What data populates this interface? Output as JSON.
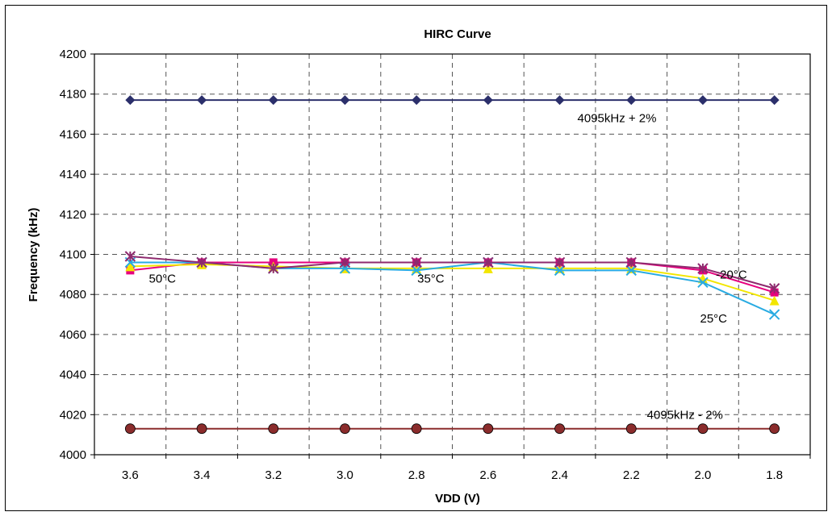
{
  "chart_data": {
    "type": "line",
    "title": "HIRC Curve",
    "xlabel": "VDD (V)",
    "ylabel": "Frequency (kHz)",
    "categories": [
      "3.6",
      "3.4",
      "3.2",
      "3.0",
      "2.8",
      "2.6",
      "2.4",
      "2.2",
      "2.0",
      "1.8"
    ],
    "ylim": [
      4000,
      4200
    ],
    "yticks": [
      "4000",
      "4020",
      "4040",
      "4060",
      "4080",
      "4100",
      "4120",
      "4140",
      "4160",
      "4180",
      "4200"
    ],
    "grid": true,
    "series": [
      {
        "color": "#2b2f6b",
        "marker": "diamond",
        "values": [
          4177,
          4177,
          4177,
          4177,
          4177,
          4177,
          4177,
          4177,
          4177,
          4177
        ]
      },
      {
        "color": "#8b2c2c",
        "marker": "circle",
        "values": [
          4013,
          4013,
          4013,
          4013,
          4013,
          4013,
          4013,
          4013,
          4013,
          4013
        ]
      },
      {
        "color": "#e6007e",
        "marker": "square",
        "values": [
          4092,
          4096,
          4096,
          4096,
          4096,
          4096,
          4096,
          4096,
          4092,
          4081
        ]
      },
      {
        "color": "#f2e600",
        "marker": "triangle",
        "values": [
          4094,
          4095,
          4094,
          4093,
          4093,
          4093,
          4093,
          4093,
          4088,
          4077
        ]
      },
      {
        "color": "#29abe2",
        "marker": "x",
        "values": [
          4096,
          4096,
          4093,
          4093,
          4092,
          4096,
          4092,
          4092,
          4086,
          4070
        ]
      },
      {
        "color": "#8e2a6e",
        "marker": "star",
        "values": [
          4099,
          4096,
          4093,
          4096,
          4096,
          4096,
          4096,
          4096,
          4093,
          4083
        ]
      }
    ],
    "annotations": [
      {
        "text": "4095kHz + 2%",
        "x": 6.8,
        "y": 4166
      },
      {
        "text": "4095kHz - 2%",
        "x": 7.75,
        "y": 4018
      },
      {
        "text": "50°C",
        "x": 0.45,
        "y": 4086
      },
      {
        "text": "35°C",
        "x": 4.2,
        "y": 4086
      },
      {
        "text": "-20°C",
        "x": 8.4,
        "y": 4088
      },
      {
        "text": "25°C",
        "x": 8.15,
        "y": 4066
      }
    ]
  }
}
